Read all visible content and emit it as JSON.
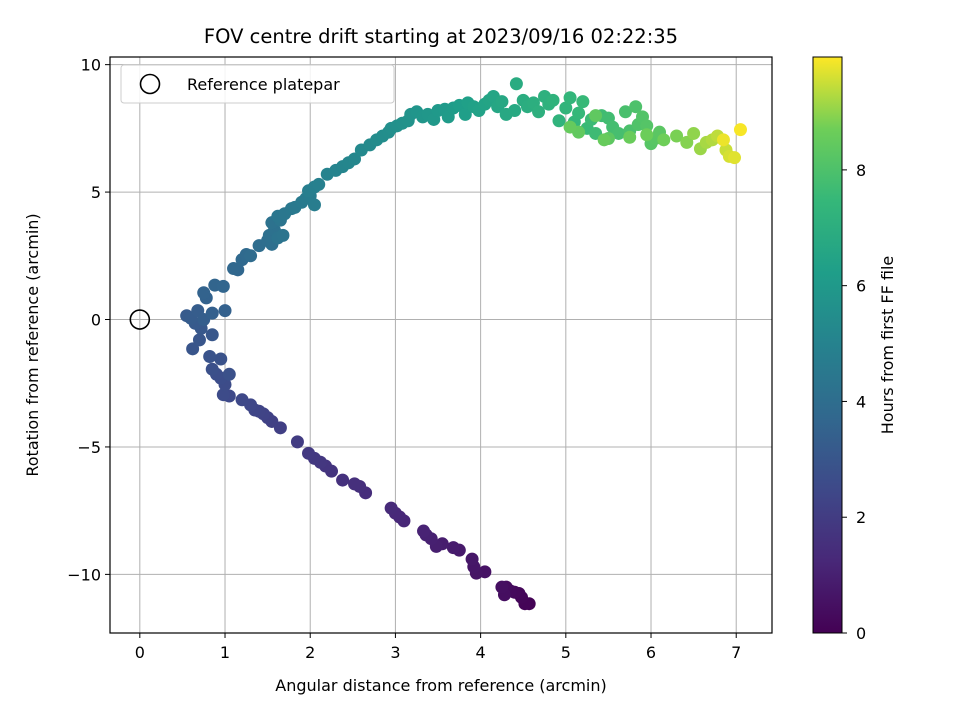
{
  "chart_data": {
    "type": "scatter",
    "title": "FOV centre drift starting at 2023/09/16 02:22:35",
    "xlabel": "Angular distance from reference (arcmin)",
    "ylabel": "Rotation from reference (arcmin)",
    "xlim": [
      -0.35,
      7.42
    ],
    "ylim": [
      -12.3,
      10.3
    ],
    "xticks": [
      0,
      1,
      2,
      3,
      4,
      5,
      6,
      7
    ],
    "yticks": [
      -10,
      -5,
      0,
      5,
      10
    ],
    "grid": true,
    "legend": {
      "location": "upper-left",
      "entries": [
        {
          "label": "Reference platepar",
          "marker": "open-circle"
        }
      ]
    },
    "reference_point": {
      "x": 0,
      "y": 0
    },
    "colorbar": {
      "label": "Hours from first FF file",
      "range": [
        0,
        9.95
      ],
      "ticks": [
        0,
        2,
        4,
        6,
        8
      ],
      "colormap": "viridis"
    },
    "points": [
      {
        "x": 4.57,
        "y": -11.15,
        "c": 0.05
      },
      {
        "x": 4.52,
        "y": -11.15,
        "c": 0.1
      },
      {
        "x": 4.48,
        "y": -10.9,
        "c": 0.15
      },
      {
        "x": 4.45,
        "y": -10.75,
        "c": 0.2
      },
      {
        "x": 4.4,
        "y": -10.7,
        "c": 0.25
      },
      {
        "x": 4.35,
        "y": -10.65,
        "c": 0.3
      },
      {
        "x": 4.3,
        "y": -10.5,
        "c": 0.35
      },
      {
        "x": 4.28,
        "y": -10.8,
        "c": 0.4
      },
      {
        "x": 4.25,
        "y": -10.5,
        "c": 0.45
      },
      {
        "x": 4.05,
        "y": -9.9,
        "c": 0.55
      },
      {
        "x": 3.95,
        "y": -9.95,
        "c": 0.6
      },
      {
        "x": 3.92,
        "y": -9.7,
        "c": 0.65
      },
      {
        "x": 3.9,
        "y": -9.4,
        "c": 0.7
      },
      {
        "x": 3.75,
        "y": -9.05,
        "c": 0.8
      },
      {
        "x": 3.68,
        "y": -8.95,
        "c": 0.85
      },
      {
        "x": 3.55,
        "y": -8.8,
        "c": 0.9
      },
      {
        "x": 3.48,
        "y": -8.9,
        "c": 0.95
      },
      {
        "x": 3.42,
        "y": -8.6,
        "c": 1.0
      },
      {
        "x": 3.36,
        "y": -8.45,
        "c": 1.05
      },
      {
        "x": 3.33,
        "y": -8.3,
        "c": 1.1
      },
      {
        "x": 3.1,
        "y": -7.9,
        "c": 1.2
      },
      {
        "x": 3.05,
        "y": -7.75,
        "c": 1.25
      },
      {
        "x": 3.0,
        "y": -7.6,
        "c": 1.3
      },
      {
        "x": 2.95,
        "y": -7.4,
        "c": 1.35
      },
      {
        "x": 2.65,
        "y": -6.8,
        "c": 1.45
      },
      {
        "x": 2.58,
        "y": -6.55,
        "c": 1.5
      },
      {
        "x": 2.52,
        "y": -6.45,
        "c": 1.55
      },
      {
        "x": 2.38,
        "y": -6.3,
        "c": 1.6
      },
      {
        "x": 2.25,
        "y": -5.95,
        "c": 1.7
      },
      {
        "x": 2.18,
        "y": -5.75,
        "c": 1.75
      },
      {
        "x": 2.12,
        "y": -5.6,
        "c": 1.8
      },
      {
        "x": 2.05,
        "y": -5.45,
        "c": 1.85
      },
      {
        "x": 1.98,
        "y": -5.25,
        "c": 1.9
      },
      {
        "x": 1.85,
        "y": -4.8,
        "c": 2.0
      },
      {
        "x": 1.65,
        "y": -4.25,
        "c": 2.1
      },
      {
        "x": 1.55,
        "y": -4.0,
        "c": 2.15
      },
      {
        "x": 1.5,
        "y": -3.85,
        "c": 2.2
      },
      {
        "x": 1.45,
        "y": -3.7,
        "c": 2.25
      },
      {
        "x": 1.4,
        "y": -3.6,
        "c": 2.3
      },
      {
        "x": 1.35,
        "y": -3.55,
        "c": 2.35
      },
      {
        "x": 1.3,
        "y": -3.35,
        "c": 2.4
      },
      {
        "x": 1.2,
        "y": -3.15,
        "c": 2.45
      },
      {
        "x": 1.05,
        "y": -3.0,
        "c": 2.5
      },
      {
        "x": 0.98,
        "y": -2.95,
        "c": 2.55
      },
      {
        "x": 1.0,
        "y": -2.55,
        "c": 2.6
      },
      {
        "x": 0.95,
        "y": -2.3,
        "c": 2.65
      },
      {
        "x": 0.9,
        "y": -2.15,
        "c": 2.7
      },
      {
        "x": 0.85,
        "y": -1.95,
        "c": 2.75
      },
      {
        "x": 1.05,
        "y": -2.15,
        "c": 2.8
      },
      {
        "x": 0.95,
        "y": -1.55,
        "c": 2.85
      },
      {
        "x": 0.82,
        "y": -1.45,
        "c": 2.9
      },
      {
        "x": 0.62,
        "y": -1.15,
        "c": 2.95
      },
      {
        "x": 0.7,
        "y": -0.8,
        "c": 3.0
      },
      {
        "x": 0.85,
        "y": -0.6,
        "c": 3.05
      },
      {
        "x": 0.72,
        "y": -0.35,
        "c": 3.1
      },
      {
        "x": 0.65,
        "y": -0.15,
        "c": 3.15
      },
      {
        "x": 0.55,
        "y": 0.15,
        "c": 3.2
      },
      {
        "x": 0.6,
        "y": 0.05,
        "c": 3.25
      },
      {
        "x": 0.68,
        "y": 0.35,
        "c": 3.3
      },
      {
        "x": 0.75,
        "y": 0.0,
        "c": 3.35
      },
      {
        "x": 0.85,
        "y": 0.25,
        "c": 3.4
      },
      {
        "x": 1.0,
        "y": 0.35,
        "c": 3.45
      },
      {
        "x": 0.78,
        "y": 0.85,
        "c": 3.5
      },
      {
        "x": 0.75,
        "y": 1.05,
        "c": 3.55
      },
      {
        "x": 0.88,
        "y": 1.35,
        "c": 3.6
      },
      {
        "x": 0.98,
        "y": 1.3,
        "c": 3.65
      },
      {
        "x": 1.15,
        "y": 1.95,
        "c": 3.7
      },
      {
        "x": 1.1,
        "y": 2.0,
        "c": 3.75
      },
      {
        "x": 1.2,
        "y": 2.35,
        "c": 3.8
      },
      {
        "x": 1.25,
        "y": 2.55,
        "c": 3.85
      },
      {
        "x": 1.3,
        "y": 2.5,
        "c": 3.9
      },
      {
        "x": 1.4,
        "y": 2.9,
        "c": 3.95
      },
      {
        "x": 1.5,
        "y": 3.1,
        "c": 4.0
      },
      {
        "x": 1.55,
        "y": 2.95,
        "c": 4.05
      },
      {
        "x": 1.52,
        "y": 3.3,
        "c": 4.1
      },
      {
        "x": 1.58,
        "y": 3.5,
        "c": 4.15
      },
      {
        "x": 1.55,
        "y": 3.8,
        "c": 4.2
      },
      {
        "x": 1.62,
        "y": 3.2,
        "c": 4.25
      },
      {
        "x": 1.68,
        "y": 3.3,
        "c": 4.3
      },
      {
        "x": 1.65,
        "y": 3.9,
        "c": 4.35
      },
      {
        "x": 1.62,
        "y": 4.05,
        "c": 4.4
      },
      {
        "x": 1.7,
        "y": 4.15,
        "c": 4.45
      },
      {
        "x": 1.78,
        "y": 4.35,
        "c": 4.5
      },
      {
        "x": 1.82,
        "y": 4.4,
        "c": 4.55
      },
      {
        "x": 1.9,
        "y": 4.6,
        "c": 4.6
      },
      {
        "x": 1.95,
        "y": 4.75,
        "c": 4.65
      },
      {
        "x": 2.0,
        "y": 4.85,
        "c": 4.7
      },
      {
        "x": 2.05,
        "y": 4.5,
        "c": 4.75
      },
      {
        "x": 1.98,
        "y": 5.05,
        "c": 4.8
      },
      {
        "x": 2.05,
        "y": 5.2,
        "c": 4.85
      },
      {
        "x": 2.1,
        "y": 5.3,
        "c": 4.9
      },
      {
        "x": 2.2,
        "y": 5.7,
        "c": 5.0
      },
      {
        "x": 2.3,
        "y": 5.85,
        "c": 5.05
      },
      {
        "x": 2.38,
        "y": 6.0,
        "c": 5.1
      },
      {
        "x": 2.45,
        "y": 6.15,
        "c": 5.15
      },
      {
        "x": 2.52,
        "y": 6.3,
        "c": 5.2
      },
      {
        "x": 2.6,
        "y": 6.65,
        "c": 5.3
      },
      {
        "x": 2.7,
        "y": 6.85,
        "c": 5.35
      },
      {
        "x": 2.78,
        "y": 7.05,
        "c": 5.4
      },
      {
        "x": 2.85,
        "y": 7.2,
        "c": 5.45
      },
      {
        "x": 2.92,
        "y": 7.35,
        "c": 5.5
      },
      {
        "x": 2.95,
        "y": 7.5,
        "c": 5.55
      },
      {
        "x": 3.02,
        "y": 7.6,
        "c": 5.6
      },
      {
        "x": 3.08,
        "y": 7.7,
        "c": 5.65
      },
      {
        "x": 3.15,
        "y": 7.8,
        "c": 5.7
      },
      {
        "x": 3.18,
        "y": 8.05,
        "c": 5.75
      },
      {
        "x": 3.25,
        "y": 8.15,
        "c": 5.8
      },
      {
        "x": 3.32,
        "y": 7.95,
        "c": 5.85
      },
      {
        "x": 3.38,
        "y": 8.05,
        "c": 5.9
      },
      {
        "x": 3.45,
        "y": 7.85,
        "c": 5.95
      },
      {
        "x": 3.5,
        "y": 8.2,
        "c": 6.0
      },
      {
        "x": 3.58,
        "y": 8.25,
        "c": 6.05
      },
      {
        "x": 3.62,
        "y": 7.95,
        "c": 6.1
      },
      {
        "x": 3.68,
        "y": 8.3,
        "c": 6.15
      },
      {
        "x": 3.75,
        "y": 8.4,
        "c": 6.2
      },
      {
        "x": 3.82,
        "y": 8.05,
        "c": 6.25
      },
      {
        "x": 3.85,
        "y": 8.5,
        "c": 6.3
      },
      {
        "x": 3.92,
        "y": 8.35,
        "c": 6.35
      },
      {
        "x": 3.98,
        "y": 8.2,
        "c": 6.4
      },
      {
        "x": 4.05,
        "y": 8.45,
        "c": 6.45
      },
      {
        "x": 4.1,
        "y": 8.6,
        "c": 6.5
      },
      {
        "x": 4.15,
        "y": 8.75,
        "c": 6.55
      },
      {
        "x": 4.2,
        "y": 8.35,
        "c": 6.6
      },
      {
        "x": 4.25,
        "y": 8.55,
        "c": 6.65
      },
      {
        "x": 4.3,
        "y": 8.05,
        "c": 6.7
      },
      {
        "x": 4.4,
        "y": 8.2,
        "c": 6.75
      },
      {
        "x": 4.42,
        "y": 9.25,
        "c": 6.85
      },
      {
        "x": 4.5,
        "y": 8.6,
        "c": 6.9
      },
      {
        "x": 4.55,
        "y": 8.35,
        "c": 6.95
      },
      {
        "x": 4.62,
        "y": 8.5,
        "c": 7.0
      },
      {
        "x": 4.68,
        "y": 8.15,
        "c": 7.05
      },
      {
        "x": 4.75,
        "y": 8.75,
        "c": 7.1
      },
      {
        "x": 4.8,
        "y": 8.45,
        "c": 7.15
      },
      {
        "x": 4.85,
        "y": 8.6,
        "c": 7.2
      },
      {
        "x": 4.92,
        "y": 7.8,
        "c": 7.25
      },
      {
        "x": 5.0,
        "y": 8.3,
        "c": 7.3
      },
      {
        "x": 5.05,
        "y": 8.7,
        "c": 7.35
      },
      {
        "x": 5.1,
        "y": 7.75,
        "c": 7.4
      },
      {
        "x": 5.15,
        "y": 8.1,
        "c": 7.45
      },
      {
        "x": 5.2,
        "y": 8.55,
        "c": 7.5
      },
      {
        "x": 5.25,
        "y": 7.5,
        "c": 7.55
      },
      {
        "x": 5.3,
        "y": 7.85,
        "c": 7.6
      },
      {
        "x": 5.35,
        "y": 7.3,
        "c": 7.65
      },
      {
        "x": 5.42,
        "y": 8.0,
        "c": 7.7
      },
      {
        "x": 5.5,
        "y": 7.9,
        "c": 7.75
      },
      {
        "x": 5.55,
        "y": 7.55,
        "c": 7.8
      },
      {
        "x": 5.62,
        "y": 7.3,
        "c": 7.85
      },
      {
        "x": 5.7,
        "y": 8.15,
        "c": 7.9
      },
      {
        "x": 5.75,
        "y": 7.4,
        "c": 7.95
      },
      {
        "x": 5.82,
        "y": 8.35,
        "c": 8.0
      },
      {
        "x": 5.85,
        "y": 7.65,
        "c": 8.05
      },
      {
        "x": 5.9,
        "y": 7.95,
        "c": 8.1
      },
      {
        "x": 5.95,
        "y": 7.6,
        "c": 8.15
      },
      {
        "x": 6.0,
        "y": 6.9,
        "c": 8.2
      },
      {
        "x": 6.05,
        "y": 7.1,
        "c": 8.25
      },
      {
        "x": 6.1,
        "y": 7.35,
        "c": 8.3
      },
      {
        "x": 5.5,
        "y": 7.1,
        "c": 8.35
      },
      {
        "x": 5.35,
        "y": 8.0,
        "c": 8.4
      },
      {
        "x": 5.15,
        "y": 7.35,
        "c": 8.45
      },
      {
        "x": 5.05,
        "y": 7.55,
        "c": 8.5
      },
      {
        "x": 5.45,
        "y": 7.05,
        "c": 8.55
      },
      {
        "x": 5.75,
        "y": 7.15,
        "c": 8.6
      },
      {
        "x": 5.95,
        "y": 7.25,
        "c": 8.65
      },
      {
        "x": 6.15,
        "y": 7.05,
        "c": 8.7
      },
      {
        "x": 6.3,
        "y": 7.2,
        "c": 8.8
      },
      {
        "x": 6.42,
        "y": 6.95,
        "c": 8.9
      },
      {
        "x": 6.5,
        "y": 7.3,
        "c": 9.0
      },
      {
        "x": 6.58,
        "y": 6.7,
        "c": 9.1
      },
      {
        "x": 6.65,
        "y": 6.95,
        "c": 9.2
      },
      {
        "x": 6.72,
        "y": 7.05,
        "c": 9.3
      },
      {
        "x": 6.78,
        "y": 7.2,
        "c": 9.4
      },
      {
        "x": 6.88,
        "y": 6.65,
        "c": 9.5
      },
      {
        "x": 6.92,
        "y": 6.4,
        "c": 9.6
      },
      {
        "x": 6.98,
        "y": 6.35,
        "c": 9.7
      },
      {
        "x": 6.85,
        "y": 7.05,
        "c": 9.8
      },
      {
        "x": 7.05,
        "y": 7.45,
        "c": 9.9
      }
    ]
  }
}
